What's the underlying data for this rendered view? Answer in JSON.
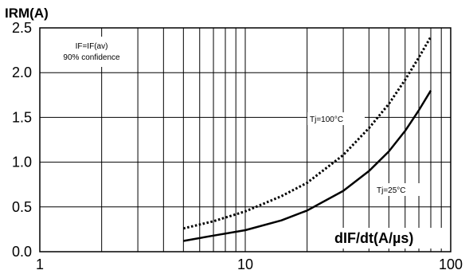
{
  "chart_data": {
    "type": "line",
    "title": "",
    "ylabel": "IRM(A)",
    "xlabel": "dIF/dt(A/µs)",
    "x_scale": "log",
    "xlim": [
      1,
      100
    ],
    "ylim": [
      0,
      2.5
    ],
    "grid": true,
    "x_tick_labels": [
      "1",
      "10",
      "100"
    ],
    "y_tick_labels": [
      "0.0",
      "0.5",
      "1.0",
      "1.5",
      "2.0",
      "2.5"
    ],
    "conditions": [
      "IF=IF(av)",
      "90% confidence"
    ],
    "series": [
      {
        "name": "Tj=100°C",
        "style": "dotted",
        "x": [
          5,
          7,
          10,
          15,
          20,
          30,
          40,
          50,
          60,
          70,
          80
        ],
        "y": [
          0.26,
          0.34,
          0.45,
          0.62,
          0.77,
          1.08,
          1.38,
          1.65,
          1.92,
          2.17,
          2.4
        ]
      },
      {
        "name": "Tj=25°C",
        "style": "solid",
        "x": [
          5,
          7,
          10,
          15,
          20,
          30,
          40,
          50,
          60,
          70,
          80
        ],
        "y": [
          0.12,
          0.18,
          0.24,
          0.35,
          0.46,
          0.68,
          0.9,
          1.12,
          1.35,
          1.58,
          1.8
        ]
      }
    ]
  }
}
